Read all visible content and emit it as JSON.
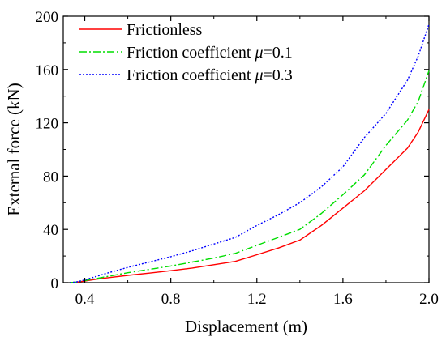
{
  "chart_data": {
    "type": "line",
    "xlabel": "Displacement (m)",
    "ylabel": "External force (kN)",
    "xlim": [
      0.3,
      2.0
    ],
    "ylim": [
      0,
      200
    ],
    "xticks": [
      "0.4",
      "0.8",
      "1.2",
      "1.6",
      "2.0"
    ],
    "yticks": [
      "0",
      "40",
      "80",
      "120",
      "160",
      "200"
    ],
    "legend_position": "top-left",
    "grid": false,
    "series": [
      {
        "name": "Frictionless",
        "color": "#ff0000",
        "dash": "solid",
        "x": [
          0.33,
          0.36,
          0.4,
          0.45,
          0.5,
          0.6,
          0.7,
          0.8,
          0.9,
          1.0,
          1.1,
          1.2,
          1.3,
          1.4,
          1.5,
          1.6,
          1.7,
          1.8,
          1.9,
          1.95,
          2.0
        ],
        "y": [
          0,
          0.3,
          1.2,
          2.5,
          3.5,
          5.5,
          7.2,
          9,
          11,
          13.5,
          16,
          21,
          26,
          32,
          43,
          56,
          69,
          85,
          101,
          113,
          130
        ]
      },
      {
        "name": "Friction coefficient μ=0.1",
        "color": "#00dd00",
        "dash": "dashdot",
        "x": [
          0.33,
          0.36,
          0.4,
          0.45,
          0.5,
          0.6,
          0.7,
          0.8,
          0.9,
          1.0,
          1.1,
          1.2,
          1.3,
          1.4,
          1.5,
          1.6,
          1.7,
          1.8,
          1.9,
          1.95,
          2.0
        ],
        "y": [
          0,
          0.4,
          1.5,
          3,
          4.5,
          7.5,
          10,
          12.5,
          15.5,
          18.5,
          22,
          28,
          34,
          40,
          52,
          66,
          81,
          103,
          122,
          136,
          159
        ]
      },
      {
        "name": "Friction coefficient μ=0.3",
        "color": "#0000ff",
        "dash": "dotted",
        "x": [
          0.33,
          0.36,
          0.4,
          0.45,
          0.5,
          0.6,
          0.7,
          0.8,
          0.9,
          1.0,
          1.1,
          1.2,
          1.3,
          1.4,
          1.5,
          1.6,
          1.7,
          1.8,
          1.9,
          1.95,
          2.0
        ],
        "y": [
          0,
          0.5,
          2,
          4.5,
          7,
          11.5,
          15.5,
          19.5,
          24,
          29,
          34,
          43,
          51,
          60,
          72,
          87,
          109,
          127,
          152,
          170,
          194
        ]
      }
    ]
  }
}
